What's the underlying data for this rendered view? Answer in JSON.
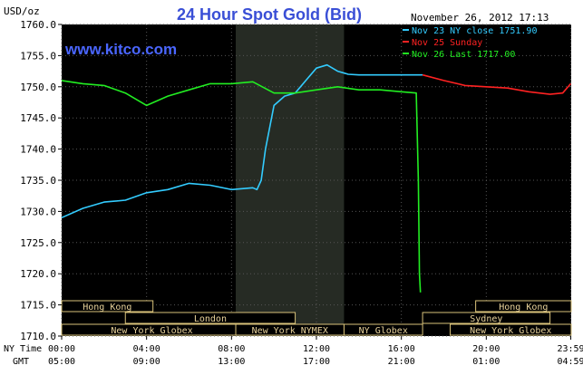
{
  "chart_data": {
    "type": "line",
    "title": "24 Hour Spot Gold (Bid)",
    "site": "www.kitco.com",
    "ylabel": "USD/oz",
    "date": "November 26, 2012 17:13",
    "ylim": [
      1710,
      1760
    ],
    "y_ticks": [
      "1760.0",
      "1755.0",
      "1750.0",
      "1745.0",
      "1740.0",
      "1735.0",
      "1730.0",
      "1725.0",
      "1720.0",
      "1715.0",
      "1710.0"
    ],
    "y_tick_values": [
      1760,
      1755,
      1750,
      1745,
      1740,
      1735,
      1730,
      1725,
      1720,
      1715,
      1710
    ],
    "x_label_ny": "NY Time",
    "x_label_gmt": "GMT",
    "x_ticks_ny": [
      "00:00",
      "04:00",
      "08:00",
      "12:00",
      "16:00",
      "20:00",
      "23:59"
    ],
    "x_ticks_gmt": [
      "05:00",
      "09:00",
      "13:00",
      "17:00",
      "21:00",
      "01:00",
      "04:59"
    ],
    "x_tick_hours": [
      0,
      4,
      8,
      12,
      16,
      20,
      23.98
    ],
    "highlight_hours": [
      8.2,
      13.3
    ],
    "legend": [
      {
        "label": "Nov 23 NY close 1751.90",
        "color": "#33ccff"
      },
      {
        "label": "Nov 25 Sunday",
        "color": "#ff2222"
      },
      {
        "label": "Nov 26 Last 1717.00",
        "color": "#22ee22"
      }
    ],
    "sessions": [
      {
        "name": "Hong Kong",
        "start": 0,
        "end": 4.3,
        "row": 0
      },
      {
        "name": "London",
        "start": 3,
        "end": 11,
        "row": 1
      },
      {
        "name": "New York Globex",
        "start": 0,
        "end": 8.5,
        "row": 2
      },
      {
        "name": "New York NYMEX",
        "start": 8.2,
        "end": 13.3,
        "row": 2
      },
      {
        "name": "NY Globex",
        "start": 13.3,
        "end": 17.0,
        "row": 2
      },
      {
        "name": "Hong Kong",
        "start": 19.5,
        "end": 24,
        "row": 0
      },
      {
        "name": "Sydney",
        "start": 17,
        "end": 23,
        "row": 1
      },
      {
        "name": "New York Globex",
        "start": 18.3,
        "end": 24,
        "row": 2
      }
    ],
    "series": [
      {
        "name": "Nov 23 NY close 1751.90",
        "color": "#33ccff",
        "x": [
          0,
          1,
          2,
          3,
          4,
          5,
          6,
          7,
          8,
          9,
          9.2,
          9.4,
          9.6,
          10,
          10.5,
          11,
          11.5,
          12,
          12.5,
          13,
          13.5,
          14,
          15,
          16,
          17
        ],
        "y": [
          1729,
          1730.5,
          1731.5,
          1731.8,
          1733,
          1733.5,
          1734.5,
          1734.2,
          1733.5,
          1733.8,
          1733.5,
          1735,
          1740,
          1747,
          1748.5,
          1749,
          1751,
          1753,
          1753.5,
          1752.5,
          1752,
          1751.9,
          1751.9,
          1751.9,
          1751.9
        ]
      },
      {
        "name": "Nov 25 Sunday",
        "color": "#ff2222",
        "x": [
          17,
          18,
          19,
          20,
          21,
          22,
          23,
          23.6,
          23.98
        ],
        "y": [
          1751.9,
          1751,
          1750.2,
          1750,
          1749.8,
          1749.2,
          1748.8,
          1749,
          1750.5
        ]
      },
      {
        "name": "Nov 26 Last 1717.00",
        "color": "#22ee22",
        "x": [
          0,
          1,
          2,
          3,
          4,
          5,
          6,
          7,
          8,
          9,
          10,
          11,
          12,
          13,
          14,
          15,
          16,
          16.7,
          16.8,
          16.85,
          16.9
        ],
        "y": [
          1751,
          1750.5,
          1750.2,
          1749,
          1747,
          1748.5,
          1749.5,
          1750.5,
          1750.5,
          1750.8,
          1749,
          1749,
          1749.5,
          1750,
          1749.5,
          1749.5,
          1749.2,
          1749,
          1735,
          1720,
          1717
        ]
      }
    ]
  }
}
